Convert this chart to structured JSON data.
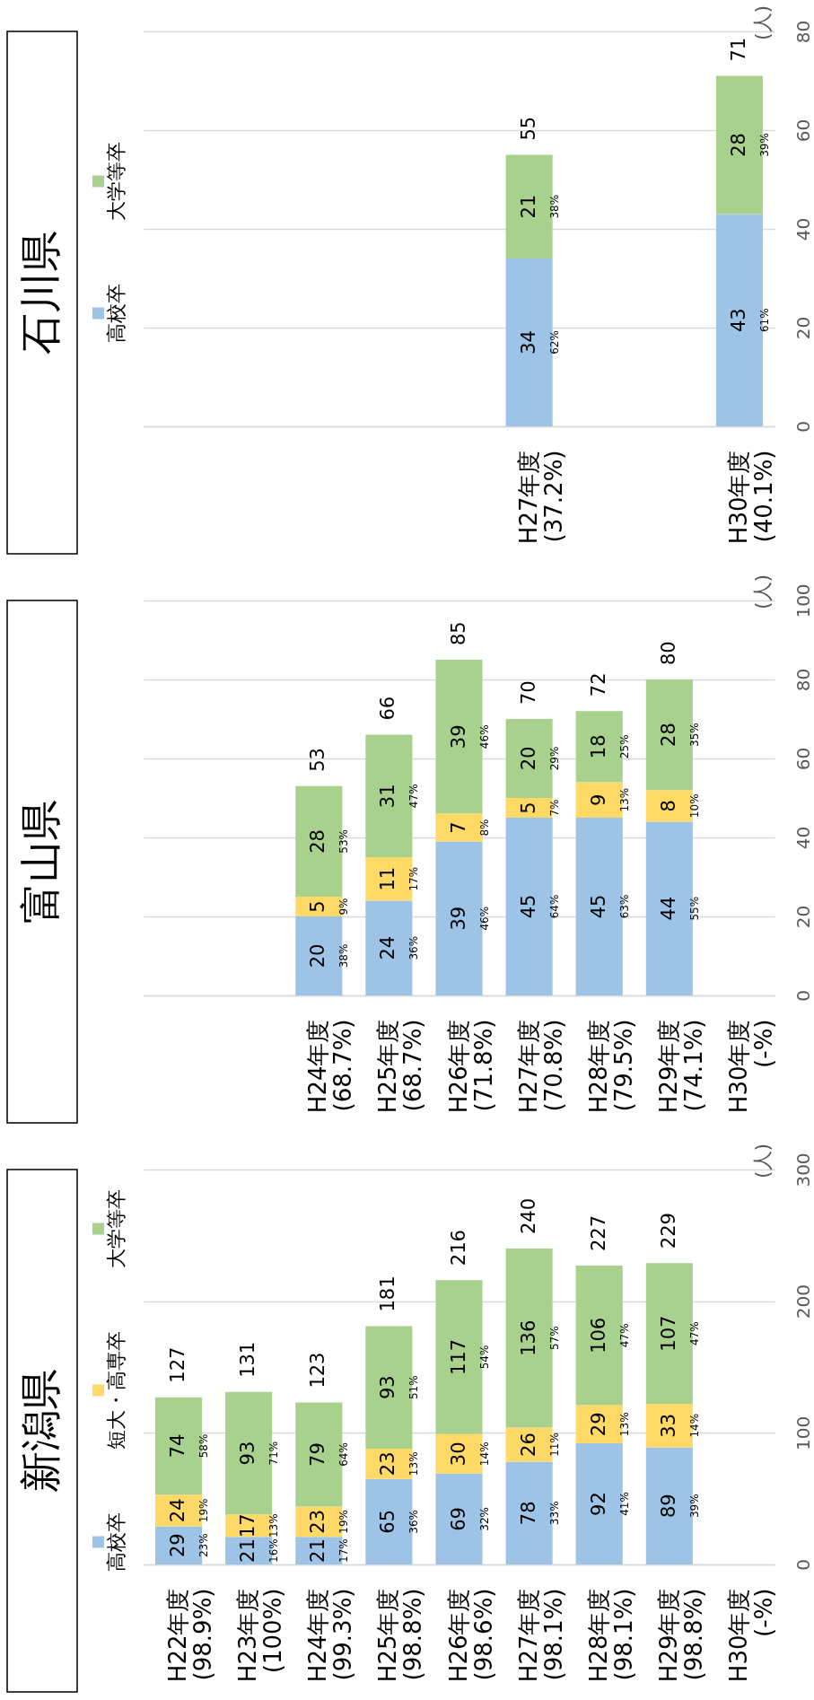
{
  "chart_data": [
    {
      "type": "bar",
      "title": "石川県",
      "stacked": true,
      "legend": "left",
      "grid": "y",
      "data_labels": true,
      "ylabel": "(人)",
      "ylim": [
        0,
        80
      ],
      "yticks": [
        0,
        20,
        40,
        60,
        80
      ],
      "categories": [
        null,
        null,
        null,
        null,
        null,
        "H27年度\n(37.2%)",
        null,
        null,
        "H30年度\n(40.1%)"
      ],
      "series": [
        {
          "name": "高校卒",
          "color": "#9dc3e6",
          "values": [
            null,
            null,
            null,
            null,
            null,
            34,
            null,
            null,
            43
          ]
        },
        {
          "name": "大学等卒",
          "color": "#a9d18e",
          "values": [
            null,
            null,
            null,
            null,
            null,
            21,
            null,
            null,
            28
          ]
        }
      ],
      "totals": [
        null,
        null,
        null,
        null,
        null,
        "55",
        null,
        null,
        "71"
      ],
      "annotations": [
        "62%",
        "38%",
        "61%",
        "39%"
      ]
    },
    {
      "type": "bar",
      "title": "富山県",
      "stacked": true,
      "grid": "y",
      "data_labels": true,
      "ylabel": "(人)",
      "ylim": [
        0,
        100
      ],
      "yticks": [
        0,
        20,
        40,
        60,
        80,
        100
      ],
      "categories": [
        null,
        null,
        "H24年度\n(68.7%)",
        "H25年度\n(68.7%)",
        "H26年度\n(71.8%)",
        "H27年度\n(70.8%)",
        "H28年度\n(79.5%)",
        "H29年度\n(74.1%)",
        "H30年度\n(-%)"
      ],
      "series": [
        {
          "color": "#9dc3e6",
          "values": [
            null,
            null,
            20,
            24,
            39,
            45,
            45,
            44,
            null
          ]
        },
        {
          "color": "#ffd966",
          "values": [
            null,
            null,
            5,
            11,
            7,
            5,
            9,
            8,
            null
          ]
        },
        {
          "color": "#a9d18e",
          "values": [
            null,
            null,
            28,
            31,
            39,
            20,
            18,
            28,
            null
          ]
        }
      ],
      "totals": [
        null,
        null,
        "53",
        "66",
        "85",
        "70",
        "72",
        "80",
        null
      ],
      "annotations": [
        "38%",
        "9%",
        "53%",
        "36%",
        "17%",
        "47%",
        "46%",
        "8%",
        "46%",
        "64%",
        "7%",
        "29%",
        "63%",
        "13%",
        "25%",
        "55%",
        "10%",
        "35%"
      ]
    },
    {
      "type": "bar",
      "title": "新潟県",
      "stacked": true,
      "legend": "left",
      "grid": "y",
      "data_labels": true,
      "ylabel": "(人)",
      "ylim": [
        0,
        300
      ],
      "yticks": [
        0,
        100,
        200,
        300
      ],
      "categories": [
        "H22年度\n(98.9%)",
        "H23年度\n(100%)",
        "H24年度\n(99.3%)",
        "H25年度\n(98.8%)",
        "H26年度\n(98.6%)",
        "H27年度\n(98.1%)",
        "H28年度\n(98.1%)",
        "H29年度\n(98.8%)",
        "H30年度\n(-%)"
      ],
      "series": [
        {
          "name": "高校卒",
          "color": "#9dc3e6",
          "values": [
            29,
            21,
            21,
            65,
            69,
            78,
            92,
            89,
            null
          ]
        },
        {
          "name": "短大・高専卒",
          "color": "#ffd966",
          "values": [
            24,
            17,
            23,
            23,
            30,
            26,
            29,
            33,
            null
          ]
        },
        {
          "name": "大学等卒",
          "color": "#a9d18e",
          "values": [
            74,
            93,
            79,
            93,
            117,
            136,
            106,
            107,
            null
          ]
        }
      ],
      "totals": [
        "127",
        "131",
        "123",
        "181",
        "216",
        "240",
        "227",
        "229",
        null
      ],
      "annotations": [
        "23%",
        "19%",
        "58%",
        "16%",
        "13%",
        "71%",
        "17%",
        "19%",
        "64%",
        "36%",
        "13%",
        "51%",
        "32%",
        "14%",
        "54%",
        "33%",
        "11%",
        "57%",
        "41%",
        "13%",
        "47%",
        "39%",
        "14%",
        "47%"
      ]
    }
  ]
}
